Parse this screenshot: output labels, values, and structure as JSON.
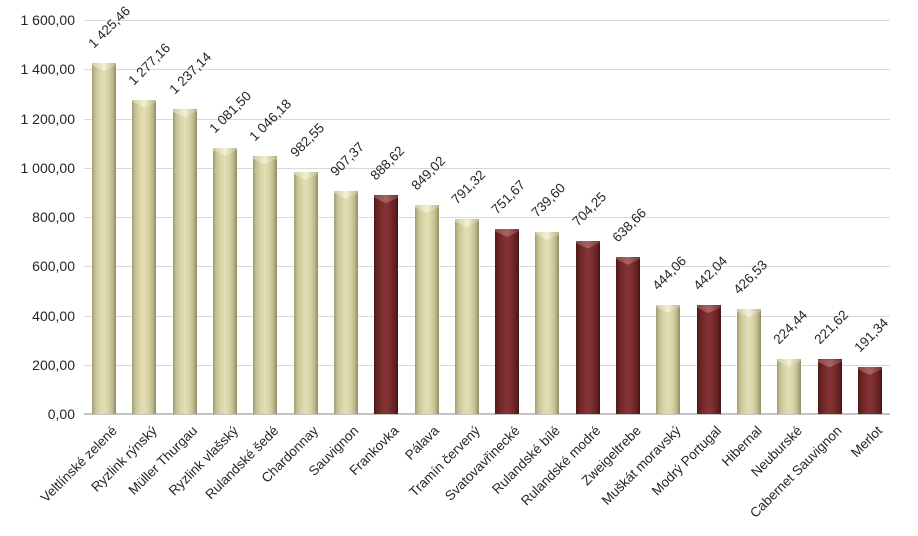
{
  "chart_data": {
    "type": "bar",
    "title": "",
    "xlabel": "",
    "ylabel": "",
    "ylim": [
      0,
      1600
    ],
    "ytick_step": 200,
    "ytick_labels_top_to_bottom": [
      "1 600,00",
      "1 400,00",
      "1 200,00",
      "1 000,00",
      "800,00",
      "600,00",
      "400,00",
      "200,00",
      "0,00"
    ],
    "grid": "horizontal",
    "legend": "none",
    "label_rotation_deg": -45,
    "categories": [
      "Veltlínské zelené",
      "Ryzlink rýnský",
      "Müller Thurgau",
      "Ryzlink vlašský",
      "Rulandské šedé",
      "Chardonnay",
      "Sauvignon",
      "Frankovka",
      "Pálava",
      "Tramín červený",
      "Svatovavřinecké",
      "Rulandské bílé",
      "Rulandské modré",
      "Zweigeltrebe",
      "Muškát moravský",
      "Modrý Portugal",
      "Hibernal",
      "Neuburské",
      "Cabernet Sauvignon",
      "Merlot"
    ],
    "values": [
      1425.46,
      1277.16,
      1237.14,
      1081.5,
      1046.18,
      982.55,
      907.37,
      888.62,
      849.02,
      791.32,
      751.67,
      739.6,
      704.25,
      638.66,
      444.06,
      442.04,
      426.53,
      224.44,
      221.62,
      191.34
    ],
    "value_labels": [
      "1 425,46",
      "1 277,16",
      "1 237,14",
      "1 081,50",
      "1 046,18",
      "982,55",
      "907,37",
      "888,62",
      "849,02",
      "791,32",
      "751,67",
      "739,60",
      "704,25",
      "638,66",
      "444,06",
      "442,04",
      "426,53",
      "224,44",
      "221,62",
      "191,34"
    ],
    "bar_color_keys": [
      "beige",
      "beige",
      "beige",
      "beige",
      "beige",
      "beige",
      "beige",
      "dark_red",
      "beige",
      "beige",
      "dark_red",
      "beige",
      "dark_red",
      "dark_red",
      "beige",
      "dark_red",
      "beige",
      "beige",
      "dark_red",
      "dark_red"
    ],
    "colors": {
      "beige": "#D6D2A4",
      "dark_red": "#7A2D2D",
      "gridline": "#D9D9D9",
      "axis_line": "#C3C3C3",
      "text": "#262626",
      "background": "#FFFFFF"
    }
  }
}
